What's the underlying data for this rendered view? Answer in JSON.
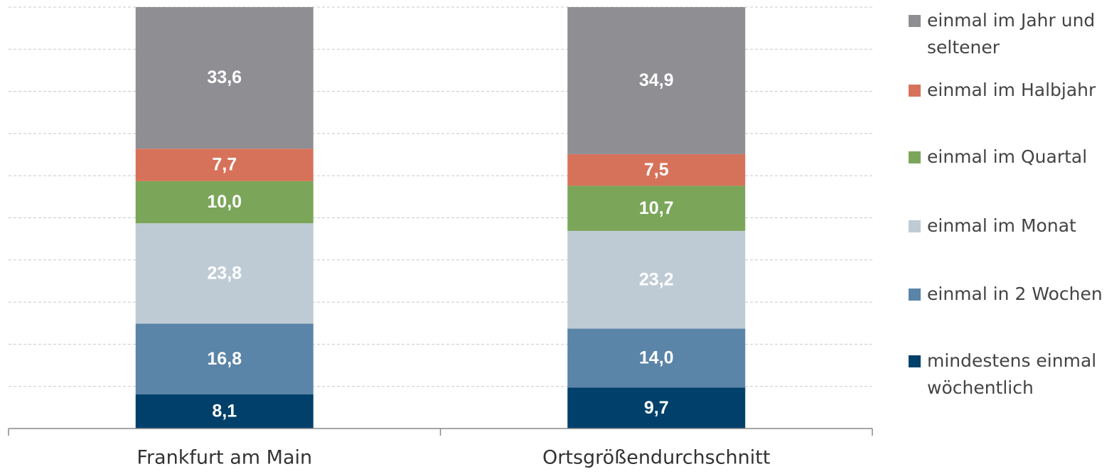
{
  "chart_data": {
    "type": "stacked-bar",
    "categories": [
      "Frankfurt am Main",
      "Ortsgrößendurchschnitt"
    ],
    "series": [
      {
        "name": "mindestens einmal wöchentlich",
        "color": "#00406b",
        "values": [
          8.1,
          9.7
        ],
        "value_labels": [
          "8,1",
          "9,7"
        ]
      },
      {
        "name": "einmal in 2 Wochen",
        "color": "#5a84a8",
        "values": [
          16.8,
          14.0
        ],
        "value_labels": [
          "16,8",
          "14,0"
        ]
      },
      {
        "name": "einmal im Monat",
        "color": "#bfcbd4",
        "values": [
          23.8,
          23.2
        ],
        "value_labels": [
          "23,8",
          "23,2"
        ]
      },
      {
        "name": "einmal im Quartal",
        "color": "#7ba65a",
        "values": [
          10.0,
          10.7
        ],
        "value_labels": [
          "10,0",
          "10,7"
        ]
      },
      {
        "name": "einmal im Halbjahr",
        "color": "#d7725a",
        "values": [
          7.7,
          7.5
        ],
        "value_labels": [
          "7,7",
          "7,5"
        ]
      },
      {
        "name": "einmal im Jahr und seltener",
        "color": "#8e8e93",
        "values": [
          33.6,
          34.9
        ],
        "value_labels": [
          "33,6",
          "34,9"
        ]
      }
    ],
    "ylim": [
      0,
      100
    ],
    "yticks": [
      0,
      10,
      20,
      30,
      40,
      50,
      60,
      70,
      80,
      90,
      100
    ],
    "grid": true,
    "legend": "right"
  }
}
